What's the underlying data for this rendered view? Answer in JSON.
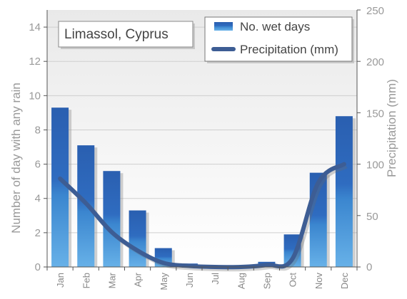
{
  "chart_data": {
    "type": "bar",
    "title": "Limassol, Cyprus",
    "categories": [
      "Jan",
      "Feb",
      "Mar",
      "Apr",
      "May",
      "Jun",
      "Jul",
      "Aug",
      "Sep",
      "Oct",
      "Nov",
      "Dec"
    ],
    "ylabel": "Number of day with any rain",
    "y2label": "Precipitation (mm)",
    "ylim": [
      0,
      15
    ],
    "y2lim": [
      0,
      250
    ],
    "yticks": [
      "0",
      "2",
      "4",
      "6",
      "8",
      "10",
      "12",
      "14"
    ],
    "y2ticks": [
      "0",
      "50",
      "100",
      "150",
      "200",
      "250"
    ],
    "grid": true,
    "legend_position": "top-right",
    "series": [
      {
        "name": "No. wet days",
        "type": "bar",
        "axis": "left",
        "color": "#2b63b5",
        "values": [
          9.3,
          7.1,
          5.6,
          3.3,
          1.1,
          0.2,
          0.0,
          0.0,
          0.3,
          1.9,
          5.5,
          8.8
        ]
      },
      {
        "name": "Precipitation (mm)",
        "type": "line",
        "axis": "right",
        "color": "#3d5d94",
        "values": [
          86,
          62,
          34,
          16,
          4,
          1,
          0,
          0,
          2,
          8,
          82,
          100
        ]
      }
    ]
  }
}
